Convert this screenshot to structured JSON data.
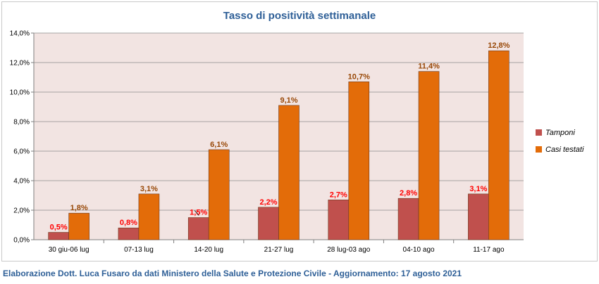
{
  "chart_data": {
    "type": "bar",
    "title": "Tasso di positività settimanale",
    "categories": [
      "30 giu-06 lug",
      "07-13 lug",
      "14-20 lug",
      "21-27 lug",
      "28 lug-03 ago",
      "04-10 ago",
      "11-17 ago"
    ],
    "series": [
      {
        "name": "Tamponi",
        "color": "#c0504d",
        "values": [
          0.5,
          0.8,
          1.5,
          2.2,
          2.7,
          2.8,
          3.1
        ],
        "labels": [
          "0,5%",
          "0,8%",
          "1,5%",
          "2,2%",
          "2,7%",
          "2,8%",
          "3,1%"
        ],
        "label_color": "#ff0000"
      },
      {
        "name": "Casi testati",
        "color": "#e36c09",
        "values": [
          1.8,
          3.1,
          6.1,
          9.1,
          10.7,
          11.4,
          12.8
        ],
        "labels": [
          "1,8%",
          "3,1%",
          "6,1%",
          "9,1%",
          "10,7%",
          "11,4%",
          "12,8%"
        ],
        "label_color": "#984807"
      }
    ],
    "ylim": [
      0,
      14
    ],
    "yticks": [
      "0,0%",
      "2,0%",
      "4,0%",
      "6,0%",
      "8,0%",
      "10,0%",
      "12,0%",
      "14,0%"
    ],
    "xlabel": "",
    "ylabel": "",
    "grid": true,
    "legend": "right",
    "plot_background": "#f2e4e2"
  },
  "footer": {
    "text": "Elaborazione Dott. Luca Fusaro da dati Ministero della Salute e Protezione Civile - Aggiornamento: 17 agosto 2021"
  }
}
